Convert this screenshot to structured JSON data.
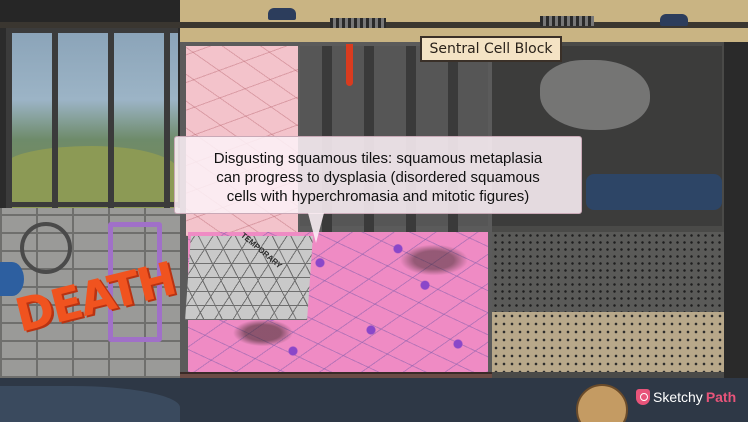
{
  "scene": {
    "sign": "Sentral Cell Block",
    "tile_tag": "TEMPORARY",
    "graffiti": "DEATH"
  },
  "caption": {
    "line1": "Disgusting squamous tiles: squamous metaplasia",
    "line2": "can progress to dysplasia (disordered squamous",
    "line3": "cells with hyperchromasia and mitotic figures)"
  },
  "logo": {
    "part1": "Sketchy",
    "part2": "Path"
  },
  "colors": {
    "caption_bg": "#fcf0f6",
    "brand_pink": "#e8547a",
    "blood": "#d93b1f",
    "nuclei_purple": "#8a47c9"
  }
}
